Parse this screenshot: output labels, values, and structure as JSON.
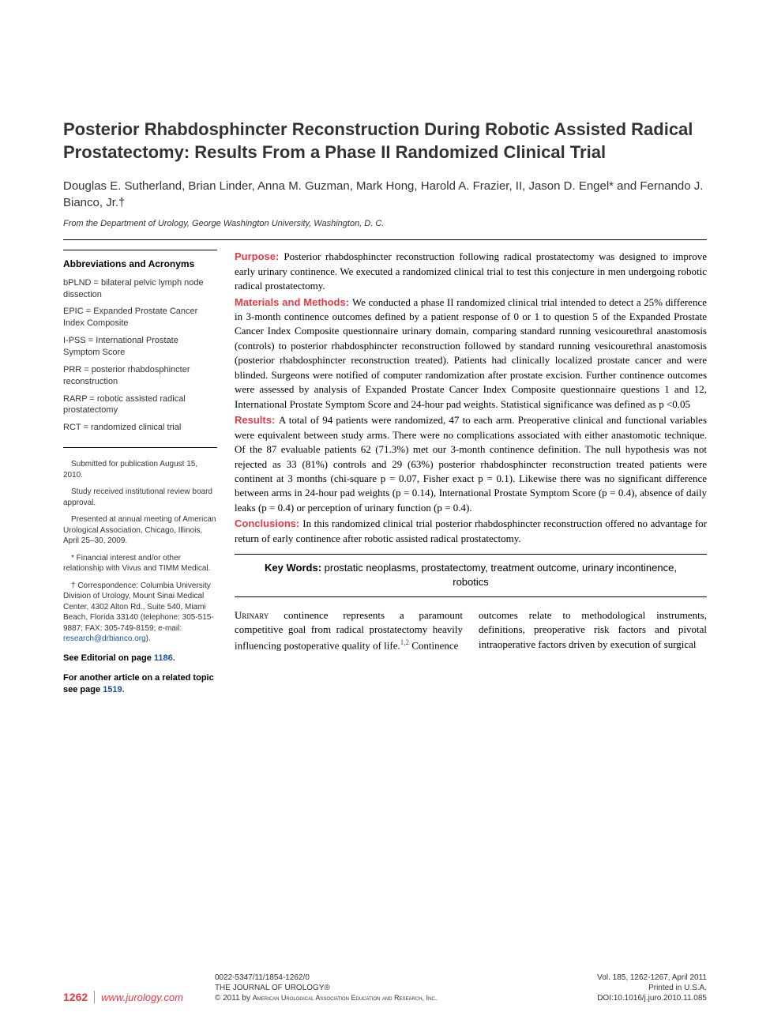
{
  "title": "Posterior Rhabdosphincter Reconstruction During Robotic Assisted Radical Prostatectomy: Results From a Phase II Randomized Clinical Trial",
  "authors": "Douglas E. Sutherland, Brian Linder, Anna M. Guzman, Mark Hong, Harold A. Frazier, II, Jason D. Engel* and Fernando J. Bianco, Jr.†",
  "affiliation": "From the Department of Urology, George Washington University, Washington, D. C.",
  "sidebar": {
    "abbrev_title": "Abbreviations and Acronyms",
    "abbrevs": [
      "bPLND = bilateral pelvic lymph node dissection",
      "EPIC = Expanded Prostate Cancer Index Composite",
      "I-PSS = International Prostate Symptom Score",
      "PRR = posterior rhabdosphincter reconstruction",
      "RARP = robotic assisted radical prostatectomy",
      "RCT = randomized clinical trial"
    ],
    "notes": [
      "Submitted for publication August 15, 2010.",
      "Study received institutional review board approval.",
      "Presented at annual meeting of American Urological Association, Chicago, Illinois, April 25–30, 2009.",
      "* Financial interest and/or other relationship with Vivus and TIMM Medical.",
      "† Correspondence: Columbia University Division of Urology, Mount Sinai Medical Center, 4302 Alton Rd., Suite 540, Miami Beach, Florida 33140 (telephone: 305-515-9887; FAX: 305-749-8159; e-mail: "
    ],
    "email": "research@drbianco.org",
    "note_end": ").",
    "editorial_label": "See Editorial on page ",
    "editorial_page": "1186.",
    "related_label": "For another article on a related topic see page ",
    "related_page": "1519."
  },
  "abstract": {
    "purpose_label": "Purpose: ",
    "purpose": "Posterior rhabdosphincter reconstruction following radical prostatectomy was designed to improve early urinary continence. We executed a randomized clinical trial to test this conjecture in men undergoing robotic radical prostatectomy.",
    "methods_label": "Materials and Methods: ",
    "methods": "We conducted a phase II randomized clinical trial intended to detect a 25% difference in 3-month continence outcomes defined by a patient response of 0 or 1 to question 5 of the Expanded Prostate Cancer Index Composite questionnaire urinary domain, comparing standard running vesicourethral anastomosis (controls) to posterior rhabdosphincter reconstruction followed by standard running vesicourethral anastomosis (posterior rhabdosphincter reconstruction treated). Patients had clinically localized prostate cancer and were blinded. Surgeons were notified of computer randomization after prostate excision. Further continence outcomes were assessed by analysis of Expanded Prostate Cancer Index Composite questionnaire questions 1 and 12, International Prostate Symptom Score and 24-hour pad weights. Statistical significance was defined as p <0.05",
    "results_label": "Results: ",
    "results": "A total of 94 patients were randomized, 47 to each arm. Preoperative clinical and functional variables were equivalent between study arms. There were no complications associated with either anastomotic technique. Of the 87 evaluable patients 62 (71.3%) met our 3-month continence definition. The null hypothesis was not rejected as 33 (81%) controls and 29 (63%) posterior rhabdosphincter reconstruction treated patients were continent at 3 months (chi-square p = 0.07, Fisher exact p = 0.1). Likewise there was no significant difference between arms in 24-hour pad weights (p = 0.14), International Prostate Symptom Score (p = 0.4), absence of daily leaks (p = 0.4) or perception of urinary function (p = 0.4).",
    "conclusions_label": "Conclusions: ",
    "conclusions": "In this randomized clinical trial posterior rhabdosphincter reconstruction offered no advantage for return of early continence after robotic assisted radical prostatectomy."
  },
  "keywords": {
    "label": "Key Words: ",
    "text": "prostatic neoplasms, prostatectomy, treatment outcome, urinary incontinence, robotics"
  },
  "body": {
    "col1_lead": "Urinary",
    "col1": " continence represents a paramount competitive goal from radical prostatectomy heavily influencing postoperative quality of life.",
    "col1_ref": "1,2",
    "col1_end": " Continence",
    "col2": "outcomes relate to methodological instruments, definitions, preoperative risk factors and pivotal intraoperative factors driven by execution of surgical"
  },
  "footer": {
    "page": "1262",
    "site": "www.jurology.com",
    "mid1": "0022-5347/11/1854-1262/0",
    "mid2": "THE JOURNAL OF UROLOGY®",
    "mid3a": "© 2011 by ",
    "mid3b": "American Urological Association Education and Research, Inc.",
    "right1": "Vol. 185, 1262-1267, April 2011",
    "right2": "Printed in U.S.A.",
    "right3": "DOI:10.1016/j.juro.2010.11.085"
  },
  "colors": {
    "accent_red": "#e63946",
    "link_blue": "#1a4f9c",
    "text": "#000000",
    "background": "#ffffff"
  }
}
